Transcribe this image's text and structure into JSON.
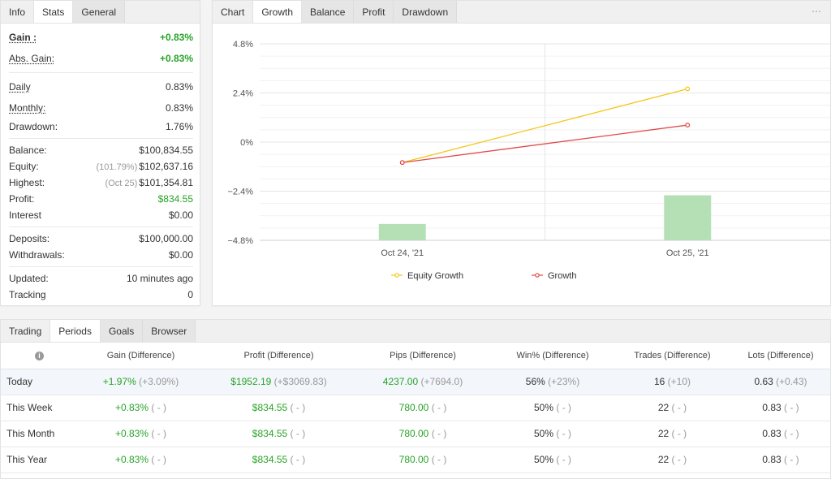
{
  "info_panel": {
    "tabs": [
      "Info",
      "Stats",
      "General"
    ],
    "stats": {
      "gain": {
        "label": "Gain :",
        "value": "+0.83%"
      },
      "abs_gain": {
        "label": "Abs. Gain:",
        "value": "+0.83%"
      },
      "daily": {
        "label": "Daily",
        "value": "0.83%"
      },
      "monthly": {
        "label": "Monthly:",
        "value": "0.83%"
      },
      "drawdown": {
        "label": "Drawdown:",
        "value": "1.76%"
      },
      "balance": {
        "label": "Balance:",
        "value": "$100,834.55"
      },
      "equity": {
        "label": "Equity:",
        "prefix": "(101.79%)",
        "value": "$102,637.16"
      },
      "highest": {
        "label": "Highest:",
        "prefix": "(Oct 25)",
        "value": "$101,354.81"
      },
      "profit": {
        "label": "Profit:",
        "value": "$834.55"
      },
      "interest": {
        "label": "Interest",
        "value": "$0.00"
      },
      "deposits": {
        "label": "Deposits:",
        "value": "$100,000.00"
      },
      "withdrawals": {
        "label": "Withdrawals:",
        "value": "$0.00"
      },
      "updated": {
        "label": "Updated:",
        "value": "10 minutes ago"
      },
      "tracking": {
        "label": "Tracking",
        "value": "0"
      }
    }
  },
  "chart_panel": {
    "tabs": [
      "Chart",
      "Growth",
      "Balance",
      "Profit",
      "Drawdown"
    ],
    "more_icon": "⋯"
  },
  "chart_data": {
    "type": "line",
    "categories": [
      "Oct 24, '21",
      "Oct 25, '21"
    ],
    "series": [
      {
        "name": "Equity Growth",
        "type": "line",
        "color": "#f5c518",
        "values": [
          -1.0,
          2.6
        ]
      },
      {
        "name": "Growth",
        "type": "line",
        "color": "#e04a4a",
        "values": [
          -1.0,
          0.83
        ]
      },
      {
        "name": "",
        "type": "bar",
        "color": "#b5e0b5",
        "values": [
          -4.0,
          -2.6
        ]
      }
    ],
    "yticks": [
      "4.8%",
      "2.4%",
      "0%",
      "−2.4%",
      "−4.8%"
    ],
    "ylim": [
      -4.8,
      4.8
    ],
    "legend_position": "bottom",
    "grid": true
  },
  "trading_panel": {
    "tabs": [
      "Trading",
      "Periods",
      "Goals",
      "Browser"
    ],
    "info_icon": "i",
    "columns": [
      "Gain (Difference)",
      "Profit (Difference)",
      "Pips (Difference)",
      "Win% (Difference)",
      "Trades (Difference)",
      "Lots (Difference)"
    ],
    "rows": [
      {
        "period": "Today",
        "gain": "+1.97%",
        "gain_diff": "(+3.09%)",
        "profit": "$1952.19",
        "profit_diff": "(+$3069.83)",
        "pips": "4237.00",
        "pips_diff": "(+7694.0)",
        "win": "56%",
        "win_diff": "(+23%)",
        "trades": "16",
        "trades_diff": "(+10)",
        "lots": "0.63",
        "lots_diff": "(+0.43)"
      },
      {
        "period": "This Week",
        "gain": "+0.83%",
        "gain_diff": "( - )",
        "profit": "$834.55",
        "profit_diff": "( - )",
        "pips": "780.00",
        "pips_diff": "( - )",
        "win": "50%",
        "win_diff": "( - )",
        "trades": "22",
        "trades_diff": "( - )",
        "lots": "0.83",
        "lots_diff": "( - )"
      },
      {
        "period": "This Month",
        "gain": "+0.83%",
        "gain_diff": "( - )",
        "profit": "$834.55",
        "profit_diff": "( - )",
        "pips": "780.00",
        "pips_diff": "( - )",
        "win": "50%",
        "win_diff": "( - )",
        "trades": "22",
        "trades_diff": "( - )",
        "lots": "0.83",
        "lots_diff": "( - )"
      },
      {
        "period": "This Year",
        "gain": "+0.83%",
        "gain_diff": "( - )",
        "profit": "$834.55",
        "profit_diff": "( - )",
        "pips": "780.00",
        "pips_diff": "( - )",
        "win": "50%",
        "win_diff": "( - )",
        "trades": "22",
        "trades_diff": "( - )",
        "lots": "0.83",
        "lots_diff": "( - )"
      }
    ]
  }
}
